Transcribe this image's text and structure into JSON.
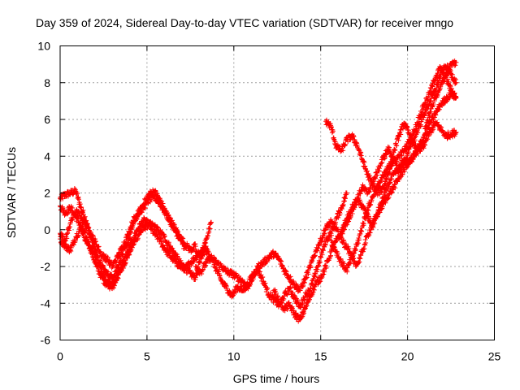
{
  "chart_data": {
    "type": "scatter",
    "title": "Day 359 of 2024, Sidereal Day-to-day VTEC variation (SDTVAR) for receiver mngo",
    "xlabel": "GPS time / hours",
    "ylabel": "SDTVAR / TECUs",
    "xlim": [
      0,
      25
    ],
    "ylim": [
      -6,
      10
    ],
    "xticks": [
      0,
      5,
      10,
      15,
      20,
      25
    ],
    "yticks": [
      -6,
      -4,
      -2,
      0,
      2,
      4,
      6,
      8,
      10
    ],
    "grid": true,
    "marker": "+",
    "color": "#ff0000",
    "series": [
      {
        "x": [
          0.0,
          0.3,
          0.6,
          0.9,
          1.2,
          1.5,
          1.8,
          2.1,
          2.4,
          2.7,
          3.0,
          3.3,
          3.6,
          3.9,
          4.2,
          4.5,
          4.8,
          5.1,
          5.4,
          5.7,
          6.0,
          6.3,
          6.6,
          6.9,
          7.2,
          7.5,
          7.8,
          8.1,
          8.4,
          8.7
        ],
        "y": [
          1.7,
          1.9,
          2.0,
          2.1,
          1.2,
          0.5,
          -0.5,
          -1.3,
          -2.3,
          -2.9,
          -3.2,
          -2.6,
          -2.0,
          -1.4,
          -0.8,
          -0.3,
          0.1,
          0.3,
          0.2,
          -0.1,
          -0.4,
          -0.9,
          -1.3,
          -1.8,
          -2.1,
          -2.4,
          -2.6,
          -1.5,
          -0.5,
          0.4
        ]
      },
      {
        "x": [
          0.0,
          0.3,
          0.6,
          0.9,
          1.2,
          1.5,
          1.8,
          2.1,
          2.4,
          2.7,
          3.0,
          3.3,
          3.6,
          3.9,
          4.2,
          4.5,
          4.8,
          5.1,
          5.4,
          5.7,
          6.0,
          6.3,
          6.6,
          6.9,
          7.2,
          7.5,
          7.8,
          8.1,
          8.4
        ],
        "y": [
          1.3,
          0.9,
          1.2,
          0.7,
          0.2,
          -0.4,
          -1.2,
          -2.0,
          -2.6,
          -3.0,
          -2.8,
          -2.4,
          -1.8,
          -1.2,
          -0.5,
          0.1,
          0.5,
          0.3,
          -0.2,
          -0.5,
          -1.0,
          -1.4,
          -1.7,
          -2.0,
          -2.1,
          -1.8,
          -1.5,
          -1.2,
          -0.9
        ]
      },
      {
        "x": [
          0.0,
          0.3,
          0.6,
          0.9,
          1.2,
          1.5,
          1.8,
          2.1,
          2.4,
          2.7,
          3.0,
          3.3,
          3.6,
          3.9,
          4.2,
          4.5,
          4.8,
          5.1,
          5.4,
          5.7,
          6.0,
          6.3,
          6.6,
          6.9,
          7.2,
          7.5,
          7.8
        ],
        "y": [
          -0.5,
          -0.9,
          -1.1,
          -0.4,
          0.1,
          -0.6,
          -1.0,
          -1.5,
          -2.0,
          -2.4,
          -2.6,
          -2.0,
          -1.3,
          -0.7,
          0.3,
          0.9,
          1.4,
          1.9,
          2.1,
          1.7,
          1.1,
          0.6,
          0.1,
          -0.4,
          -0.8,
          -1.1,
          -0.9
        ]
      },
      {
        "x": [
          0.0,
          0.3,
          0.6,
          0.9,
          1.2,
          1.5,
          1.8,
          2.1,
          2.4,
          2.7,
          3.0,
          3.3,
          3.6,
          3.9,
          4.2,
          4.5,
          4.8,
          5.1,
          5.4,
          5.7,
          6.0,
          6.3,
          6.6,
          6.9,
          7.2
        ],
        "y": [
          -0.2,
          -0.6,
          0.4,
          1.0,
          0.7,
          0.2,
          -0.3,
          -0.8,
          -1.4,
          -1.6,
          -2.0,
          -1.5,
          -0.9,
          -0.3,
          0.5,
          0.9,
          1.2,
          1.6,
          1.8,
          1.5,
          1.0,
          0.5,
          0.0,
          -0.5,
          -1.0
        ]
      },
      {
        "x": [
          7.8,
          8.1,
          8.4,
          8.7,
          9.0,
          9.3,
          9.6,
          9.9,
          10.2,
          10.5,
          10.8,
          11.1,
          11.4,
          11.7,
          12.0,
          12.3,
          12.6,
          12.9,
          13.2,
          13.5,
          13.8,
          14.1,
          14.4,
          14.7,
          15.0,
          15.3,
          15.6,
          15.9,
          16.2,
          16.5
        ],
        "y": [
          -1.2,
          -1.4,
          -1.1,
          -1.5,
          -2.2,
          -2.8,
          -3.2,
          -3.6,
          -3.1,
          -3.3,
          -3.0,
          -2.4,
          -2.2,
          -2.8,
          -3.5,
          -3.8,
          -4.1,
          -3.6,
          -3.2,
          -3.7,
          -4.2,
          -3.6,
          -3.2,
          -2.4,
          -1.5,
          -0.6,
          -0.2,
          0.6,
          1.2,
          2.0
        ]
      },
      {
        "x": [
          7.8,
          8.1,
          8.4,
          8.7,
          9.0,
          9.3,
          9.6,
          9.9,
          10.2,
          10.5,
          10.8,
          11.1,
          11.4,
          11.7,
          12.0,
          12.3,
          12.6,
          12.9,
          13.2,
          13.5,
          13.8,
          14.1,
          14.4,
          14.7,
          15.0,
          15.3,
          15.6,
          15.9,
          16.2,
          16.5
        ],
        "y": [
          -2.0,
          -2.3,
          -1.8,
          -1.5,
          -1.8,
          -2.0,
          -2.3,
          -2.4,
          -2.6,
          -2.8,
          -3.1,
          -2.6,
          -2.0,
          -1.8,
          -1.5,
          -1.3,
          -1.6,
          -2.2,
          -2.6,
          -3.0,
          -3.3,
          -2.7,
          -2.0,
          -1.2,
          -0.6,
          0.1,
          0.4,
          0.0,
          -0.5,
          -1.0
        ]
      },
      {
        "x": [
          12.3,
          12.6,
          12.9,
          13.2,
          13.5,
          13.8,
          14.1,
          14.4,
          14.7,
          15.0,
          15.3,
          15.6,
          15.9,
          16.2,
          16.5,
          16.8,
          17.1,
          17.4,
          17.7,
          18.0,
          18.3,
          18.6,
          18.9,
          19.2,
          19.5,
          19.8,
          20.1,
          20.4,
          20.7,
          21.0
        ],
        "y": [
          -3.3,
          -3.9,
          -4.3,
          -4.1,
          -4.6,
          -4.9,
          -4.3,
          -3.6,
          -3.0,
          -2.6,
          -2.0,
          -1.2,
          -0.6,
          -0.2,
          0.4,
          1.0,
          1.6,
          1.3,
          0.7,
          0.2,
          1.0,
          1.7,
          2.5,
          3.0,
          3.3,
          3.8,
          3.6,
          4.1,
          4.4,
          4.6
        ]
      },
      {
        "x": [
          15.3,
          15.6,
          15.9,
          16.2,
          16.5,
          16.8,
          17.1,
          17.4,
          17.7,
          18.0,
          18.3,
          18.6,
          18.9,
          19.2,
          19.5,
          19.8,
          20.1,
          20.4,
          20.7,
          21.0,
          21.3,
          21.6,
          21.9,
          22.2,
          22.5,
          22.8
        ],
        "y": [
          5.9,
          5.6,
          4.5,
          4.3,
          4.9,
          5.1,
          4.6,
          3.8,
          3.0,
          2.4,
          2.0,
          2.3,
          3.1,
          4.2,
          5.1,
          5.8,
          5.2,
          4.6,
          4.3,
          4.8,
          5.3,
          5.8,
          5.5,
          5.1,
          5.2,
          5.3
        ]
      },
      {
        "x": [
          15.6,
          15.9,
          16.2,
          16.5,
          16.8,
          17.1,
          17.4,
          17.7,
          18.0,
          18.3,
          18.6,
          18.9,
          19.2,
          19.5,
          19.8,
          20.1,
          20.4,
          20.7,
          21.0,
          21.3,
          21.6,
          21.9,
          22.2,
          22.5,
          22.8
        ],
        "y": [
          -0.6,
          -1.2,
          -1.8,
          -2.2,
          -1.5,
          -0.8,
          0.2,
          1.1,
          1.8,
          2.4,
          2.9,
          3.4,
          3.7,
          4.0,
          4.3,
          4.8,
          5.4,
          6.2,
          6.9,
          7.5,
          8.3,
          8.8,
          8.3,
          7.6,
          7.2
        ]
      },
      {
        "x": [
          16.2,
          16.5,
          16.8,
          17.1,
          17.4,
          17.7,
          18.0,
          18.3,
          18.6,
          18.9,
          19.2,
          19.5,
          19.8,
          20.1,
          20.4,
          20.7,
          21.0,
          21.3,
          21.6,
          21.9,
          22.2,
          22.5,
          22.8
        ],
        "y": [
          -0.1,
          0.6,
          1.2,
          1.7,
          2.3,
          2.0,
          2.6,
          3.2,
          3.9,
          4.4,
          3.8,
          3.2,
          3.6,
          4.4,
          5.0,
          5.7,
          6.4,
          7.0,
          7.6,
          8.4,
          8.9,
          8.5,
          8.0
        ]
      },
      {
        "x": [
          16.5,
          16.8,
          17.1,
          17.4,
          17.7,
          18.0,
          18.3,
          18.6,
          18.9,
          19.2,
          19.5,
          19.8,
          20.1,
          20.4,
          20.7,
          21.0,
          21.3,
          21.6,
          21.9,
          22.2,
          22.5,
          22.8
        ],
        "y": [
          -0.9,
          -1.6,
          -1.9,
          -1.2,
          -0.3,
          0.3,
          0.9,
          1.4,
          1.9,
          2.3,
          2.8,
          3.3,
          3.7,
          4.1,
          4.6,
          5.2,
          5.8,
          6.3,
          6.8,
          7.1,
          7.4,
          7.2
        ]
      },
      {
        "x": [
          21.0,
          21.3,
          21.6,
          21.9,
          22.2,
          22.5,
          22.8
        ],
        "y": [
          5.5,
          6.4,
          7.2,
          7.8,
          8.4,
          9.0,
          9.1
        ]
      }
    ]
  }
}
